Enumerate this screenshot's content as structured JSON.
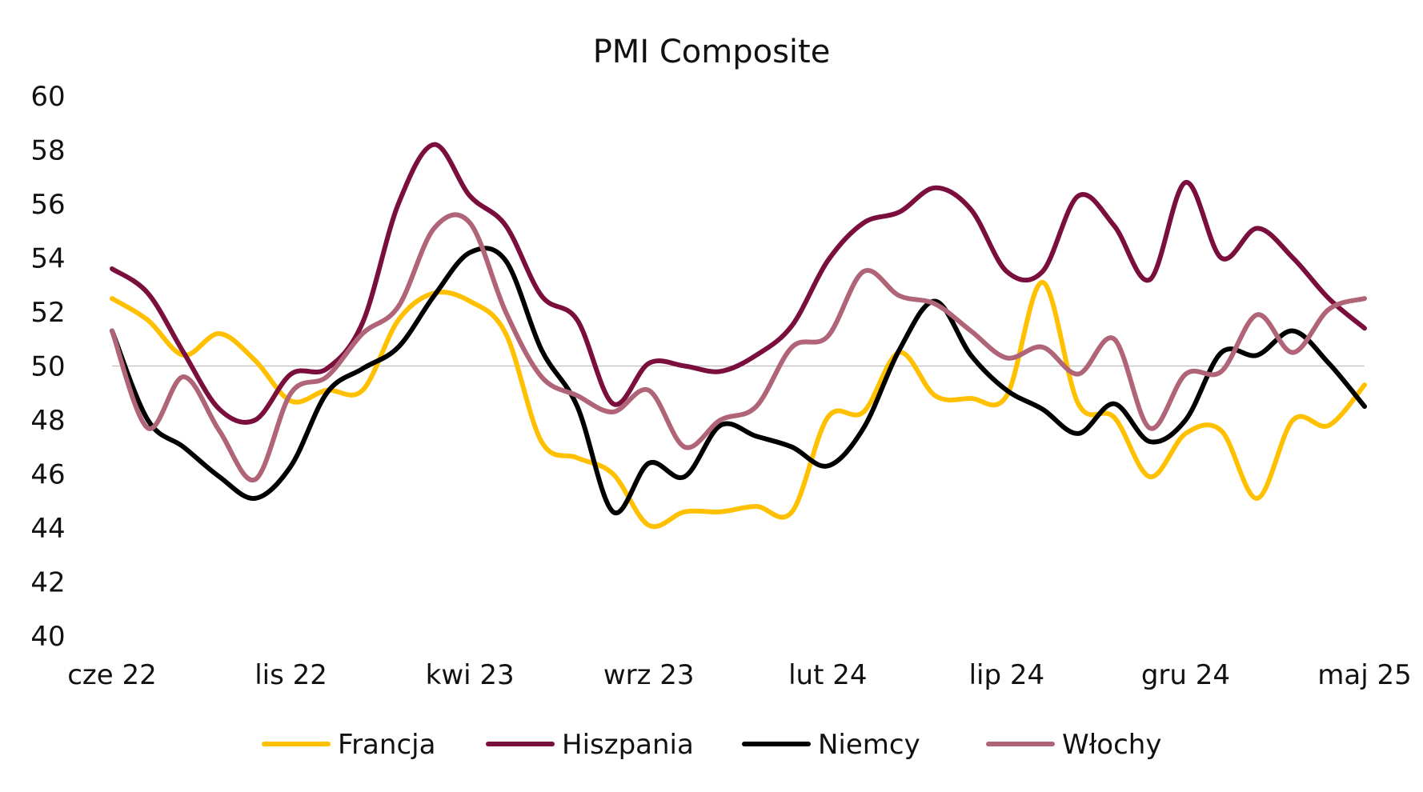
{
  "chart_data": {
    "type": "line",
    "title": "PMI Composite",
    "xlabel": "",
    "ylabel": "",
    "ylim": [
      40,
      60
    ],
    "yticks": [
      "40",
      "42",
      "44",
      "46",
      "48",
      "50",
      "52",
      "54",
      "56",
      "58",
      "60"
    ],
    "reference_line": 50,
    "x_tick_labels": [
      "cze 22",
      "lis 22",
      "kwi 23",
      "wrz 23",
      "lut 24",
      "lip 24",
      "gru 24",
      "maj 25"
    ],
    "x_tick_positions": [
      0,
      5,
      10,
      15,
      20,
      25,
      30,
      35
    ],
    "x": [
      "cze 22",
      "lip 22",
      "sie 22",
      "wrz 22",
      "paź 22",
      "lis 22",
      "gru 22",
      "sty 23",
      "lut 23",
      "mar 23",
      "kwi 23",
      "maj 23",
      "cze 23",
      "lip 23",
      "sie 23",
      "wrz 23",
      "paź 23",
      "lis 23",
      "gru 23",
      "sty 24",
      "lut 24",
      "mar 24",
      "kwi 24",
      "maj 24",
      "cze 24",
      "lip 24",
      "sie 24",
      "wrz 24",
      "paź 24",
      "lis 24",
      "gru 24",
      "sty 25",
      "lut 25",
      "mar 25",
      "kwi 25",
      "maj 25"
    ],
    "grid": false,
    "legend_position": "bottom",
    "series": [
      {
        "name": "Francja",
        "color": "#FFC000",
        "values": [
          52.5,
          51.7,
          50.4,
          51.2,
          50.2,
          48.7,
          49.1,
          49.1,
          51.7,
          52.7,
          52.4,
          51.2,
          47.2,
          46.6,
          46.0,
          44.1,
          44.6,
          44.6,
          44.8,
          44.6,
          48.1,
          48.3,
          50.5,
          48.9,
          48.8,
          48.9,
          53.1,
          48.6,
          48.1,
          45.9,
          47.5,
          47.6,
          45.1,
          48.0,
          47.8,
          49.3
        ]
      },
      {
        "name": "Hiszpania",
        "color": "#7A0E3D",
        "values": [
          53.6,
          52.7,
          50.5,
          48.4,
          48.0,
          49.7,
          49.9,
          51.6,
          56.0,
          58.2,
          56.3,
          55.2,
          52.6,
          51.7,
          48.6,
          50.1,
          50.0,
          49.8,
          50.4,
          51.5,
          53.9,
          55.3,
          55.7,
          56.6,
          55.8,
          53.5,
          53.5,
          56.3,
          55.2,
          53.2,
          56.8,
          54.0,
          55.1,
          54.0,
          52.5,
          51.4
        ]
      },
      {
        "name": "Niemcy",
        "color": "#000000",
        "values": [
          51.3,
          48.0,
          47.0,
          45.9,
          45.1,
          46.3,
          49.0,
          49.9,
          50.7,
          52.6,
          54.2,
          53.9,
          50.6,
          48.5,
          44.6,
          46.4,
          45.9,
          47.8,
          47.4,
          47.0,
          46.3,
          47.7,
          50.6,
          52.4,
          50.4,
          49.1,
          48.4,
          47.5,
          48.6,
          47.2,
          48.0,
          50.5,
          50.4,
          51.3,
          50.1,
          48.5
        ]
      },
      {
        "name": "Włochy",
        "color": "#B06478",
        "values": [
          51.3,
          47.7,
          49.6,
          47.6,
          45.8,
          49.0,
          49.6,
          51.2,
          52.2,
          55.1,
          55.3,
          52.0,
          49.6,
          48.9,
          48.3,
          49.1,
          47.0,
          48.0,
          48.5,
          50.7,
          51.1,
          53.5,
          52.6,
          52.3,
          51.3,
          50.3,
          50.7,
          49.7,
          51.0,
          47.7,
          49.7,
          49.8,
          51.9,
          50.5,
          52.1,
          52.5
        ]
      }
    ]
  }
}
